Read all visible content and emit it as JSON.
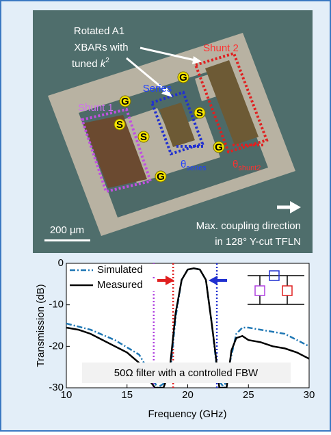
{
  "image": {
    "annotation": [
      "Rotated A1",
      "XBARs with",
      "tuned",
      "k",
      "2"
    ],
    "shunt2": "Shunt 2",
    "series": "Series",
    "shunt1": "Shunt 1",
    "pads": [
      "G",
      "G",
      "G",
      "G",
      "S",
      "S",
      "S"
    ],
    "theta_series": [
      "θ",
      "series"
    ],
    "theta_shunt2": [
      "θ",
      "shunt2"
    ],
    "scale_bar": "200 µm",
    "direction": [
      "Max. coupling direction",
      "in 128° Y-cut TFLN"
    ]
  },
  "chart_data": {
    "type": "line",
    "xlabel": "Frequency (GHz)",
    "ylabel": "Transmission (dB)",
    "annotation": "50Ω filter with a controlled FBW",
    "legend": "upper left",
    "xlim": [
      10,
      30
    ],
    "ylim": [
      -30,
      0
    ],
    "xticks": [
      10,
      15,
      20,
      25,
      30
    ],
    "yticks": [
      0,
      -10,
      -20,
      -30
    ],
    "series": [
      {
        "name": "Simulated",
        "color": "#1f77b4",
        "dash": "dashdot",
        "x": [
          10,
          12,
          14,
          16,
          17,
          17.5,
          18.5,
          19,
          19.5,
          20,
          20.5,
          21,
          21.5,
          22,
          22.5,
          23,
          24,
          24.5,
          25,
          26,
          27,
          28,
          29,
          30
        ],
        "values": [
          -14.5,
          -16,
          -18.5,
          -22,
          -27,
          -30,
          -28,
          -13,
          -4,
          -1.5,
          -1.2,
          -1.5,
          -4,
          -15,
          -28,
          -30,
          -17,
          -15.5,
          -15.5,
          -16,
          -16.5,
          -17,
          -18.5,
          -20
        ]
      },
      {
        "name": "Measured",
        "color": "#000000",
        "dash": "solid",
        "x": [
          10,
          11,
          12,
          13,
          14,
          15,
          16,
          16.8,
          17.3,
          18,
          18.5,
          19,
          19.5,
          20,
          20.5,
          21,
          21.5,
          22,
          22.3,
          22.6,
          23.2,
          23.6,
          24,
          24.5,
          25,
          26,
          27,
          28,
          29,
          30
        ],
        "values": [
          -15.5,
          -16,
          -17,
          -18.5,
          -20,
          -21.5,
          -24,
          -28,
          -30,
          -30,
          -26,
          -12,
          -4,
          -1.5,
          -1.2,
          -1.5,
          -4,
          -15,
          -22,
          -30,
          -30,
          -21,
          -18,
          -17.5,
          -18.5,
          -19,
          -20,
          -20.5,
          -21.5,
          -23
        ]
      }
    ],
    "markers": [
      {
        "x": 17.2,
        "color": "#b040e0"
      },
      {
        "x": 18.8,
        "color": "#e02020"
      },
      {
        "x": 22.4,
        "color": "#2030d0"
      }
    ]
  }
}
